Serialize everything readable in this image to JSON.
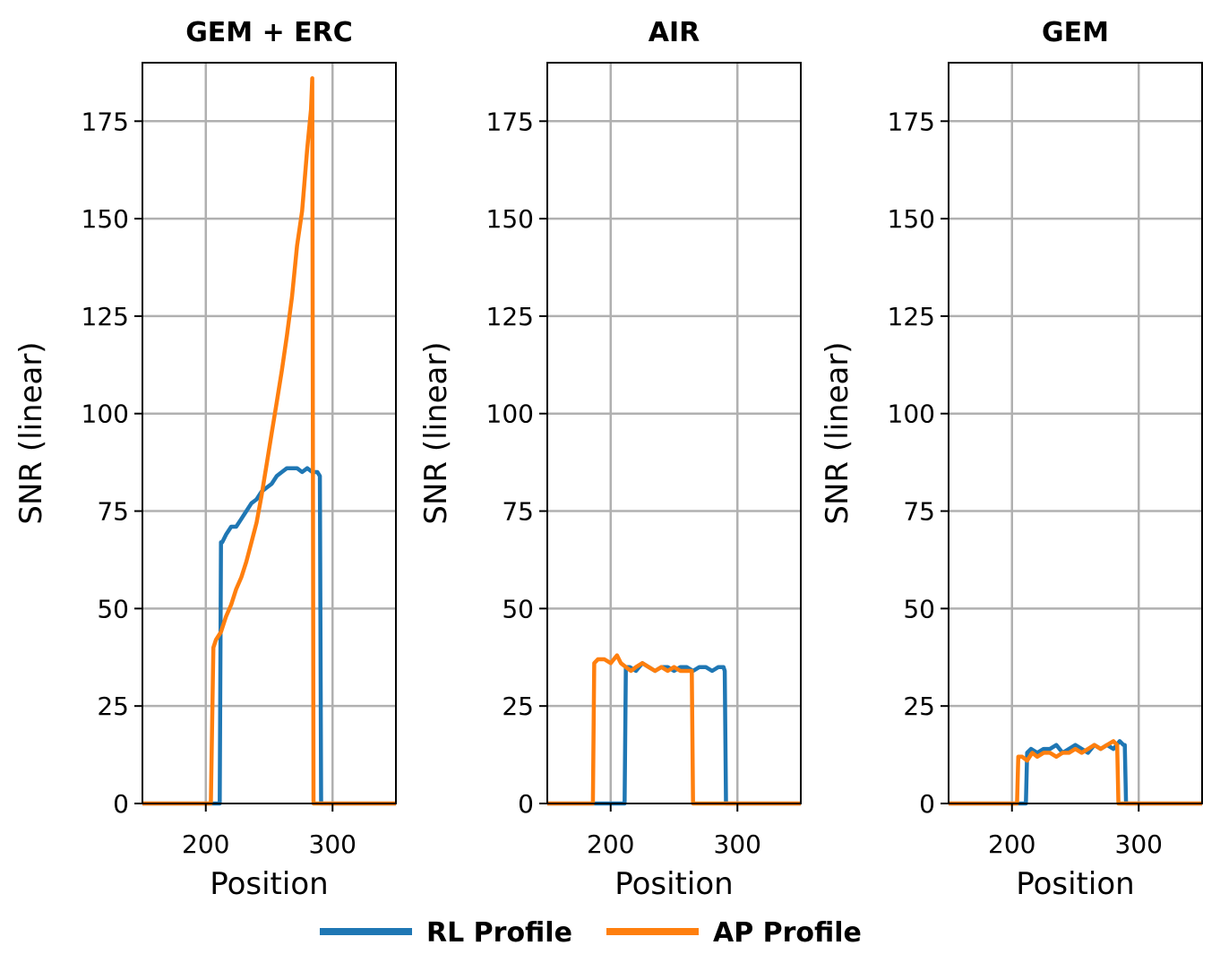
{
  "colors": {
    "rl": "#1f77b4",
    "ap": "#ff7f0e",
    "grid": "#b0b0b0",
    "axis": "#000000"
  },
  "legend": {
    "rl_label": "RL Profile",
    "ap_label": "AP Profile",
    "placement": "bottom-center"
  },
  "chart_data": [
    {
      "type": "line",
      "title": "GEM + ERC",
      "xlabel": "Position",
      "ylabel": "SNR (linear)",
      "xlim": [
        150,
        350
      ],
      "ylim": [
        0,
        190
      ],
      "xticks": [
        200,
        300
      ],
      "yticks": [
        0,
        25,
        50,
        75,
        100,
        125,
        150,
        175
      ],
      "grid": true,
      "series": [
        {
          "name": "RL Profile",
          "key": "rl",
          "x": [
            150,
            211,
            212,
            213,
            216,
            220,
            224,
            228,
            232,
            236,
            240,
            244,
            248,
            252,
            256,
            260,
            264,
            268,
            272,
            276,
            280,
            284,
            288,
            290,
            291,
            292,
            350
          ],
          "y": [
            0,
            0,
            67,
            67,
            69,
            71,
            71,
            73,
            75,
            77,
            78,
            80,
            81,
            82,
            84,
            85,
            86,
            86,
            86,
            85,
            86,
            85,
            85,
            84,
            0,
            0,
            0
          ]
        },
        {
          "name": "AP Profile",
          "key": "ap",
          "x": [
            150,
            204,
            206,
            208,
            212,
            216,
            220,
            224,
            228,
            232,
            236,
            240,
            244,
            248,
            252,
            256,
            260,
            264,
            268,
            272,
            276,
            280,
            283,
            284,
            285,
            286,
            350
          ],
          "y": [
            0,
            0,
            40,
            42,
            44,
            48,
            51,
            55,
            58,
            62,
            67,
            72,
            79,
            87,
            95,
            103,
            111,
            120,
            130,
            143,
            152,
            168,
            178,
            186,
            0,
            0,
            0
          ]
        }
      ]
    },
    {
      "type": "line",
      "title": "AIR",
      "xlabel": "Position",
      "ylabel": "SNR (linear)",
      "xlim": [
        150,
        350
      ],
      "ylim": [
        0,
        190
      ],
      "xticks": [
        200,
        300
      ],
      "yticks": [
        0,
        25,
        50,
        75,
        100,
        125,
        150,
        175
      ],
      "grid": true,
      "series": [
        {
          "name": "RL Profile",
          "key": "rl",
          "x": [
            150,
            211,
            212,
            215,
            220,
            225,
            230,
            235,
            240,
            245,
            250,
            255,
            260,
            265,
            270,
            275,
            280,
            285,
            289,
            290,
            291,
            292,
            350
          ],
          "y": [
            0,
            0,
            35,
            35,
            34,
            36,
            35,
            34,
            35,
            35,
            34,
            35,
            35,
            34,
            35,
            35,
            34,
            35,
            35,
            34,
            0,
            0,
            0
          ]
        },
        {
          "name": "AP Profile",
          "key": "ap",
          "x": [
            150,
            186,
            187,
            190,
            195,
            200,
            205,
            208,
            212,
            216,
            220,
            225,
            230,
            235,
            240,
            245,
            250,
            255,
            260,
            264,
            265,
            266,
            350
          ],
          "y": [
            0,
            0,
            36,
            37,
            37,
            36,
            38,
            36,
            35,
            34,
            35,
            36,
            35,
            34,
            35,
            34,
            35,
            34,
            34,
            34,
            0,
            0,
            0
          ]
        }
      ]
    },
    {
      "type": "line",
      "title": "GEM",
      "xlabel": "Position",
      "ylabel": "SNR (linear)",
      "xlim": [
        150,
        350
      ],
      "ylim": [
        0,
        190
      ],
      "xticks": [
        200,
        300
      ],
      "yticks": [
        0,
        25,
        50,
        75,
        100,
        125,
        150,
        175
      ],
      "grid": true,
      "series": [
        {
          "name": "RL Profile",
          "key": "rl",
          "x": [
            150,
            211,
            212,
            215,
            220,
            225,
            230,
            235,
            240,
            245,
            250,
            255,
            260,
            265,
            270,
            275,
            280,
            285,
            288,
            289,
            290,
            291,
            350
          ],
          "y": [
            0,
            0,
            13,
            14,
            13,
            14,
            14,
            15,
            13,
            14,
            15,
            14,
            13,
            15,
            14,
            15,
            14,
            16,
            15,
            15,
            0,
            0,
            0
          ]
        },
        {
          "name": "AP Profile",
          "key": "ap",
          "x": [
            150,
            204,
            205,
            208,
            212,
            216,
            220,
            225,
            230,
            235,
            240,
            245,
            250,
            255,
            260,
            265,
            270,
            275,
            280,
            283,
            284,
            285,
            350
          ],
          "y": [
            0,
            0,
            12,
            12,
            11,
            13,
            12,
            13,
            13,
            12,
            13,
            13,
            14,
            13,
            14,
            15,
            14,
            15,
            16,
            15,
            0,
            0,
            0
          ]
        }
      ]
    }
  ]
}
